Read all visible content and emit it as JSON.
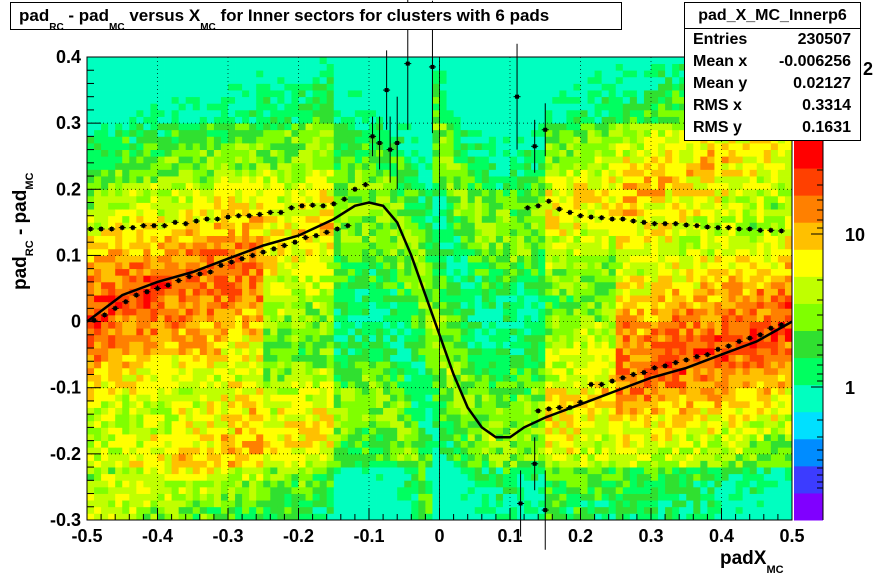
{
  "title": {
    "p1": "pad",
    "s1": "RC",
    "p2": " - pad",
    "s2": "MC",
    "p3": " versus X",
    "s3": "MC",
    "p4": " for Inner sectors for clusters with 6 pads"
  },
  "stats": {
    "name": "pad_X_MC_Innerp6",
    "rows": [
      {
        "key": "Entries",
        "value": "230507"
      },
      {
        "key": "Mean x",
        "value": "-0.006256"
      },
      {
        "key": "Mean y",
        "value": "0.02127"
      },
      {
        "key": "RMS x",
        "value": "0.3314"
      },
      {
        "key": "RMS y",
        "value": "0.1631"
      }
    ]
  },
  "axis_labels": {
    "x_main": "padX",
    "x_sub": "MC",
    "y_p1": "pad",
    "y_s1": "RC",
    "y_p2": " - pad",
    "y_s2": "MC"
  },
  "chart_data": {
    "type": "heatmap",
    "xlim": [
      -0.5,
      0.5
    ],
    "ylim": [
      -0.3,
      0.4
    ],
    "x_ticks": [
      "-0.5",
      "-0.4",
      "-0.3",
      "-0.2",
      "-0.1",
      "0",
      "0.1",
      "0.2",
      "0.3",
      "0.4",
      "0.5"
    ],
    "y_ticks": [
      "-0.3",
      "-0.2",
      "-0.1",
      "0",
      "0.1",
      "0.2",
      "0.3",
      "0.4"
    ],
    "color_scale": {
      "log": true,
      "ticks": [
        "1",
        "10"
      ],
      "partial_tick": "2",
      "palette": [
        "#8000ff",
        "#3c3cff",
        "#008cff",
        "#00e0ff",
        "#00ffc0",
        "#00ff60",
        "#30e030",
        "#80ff00",
        "#c0ff00",
        "#ffff00",
        "#ffc000",
        "#ff8000",
        "#ff4000",
        "#ff0000"
      ]
    },
    "grid": true,
    "fit_curve": [
      [
        -0.5,
        0.0
      ],
      [
        -0.45,
        0.04
      ],
      [
        -0.4,
        0.06
      ],
      [
        -0.35,
        0.075
      ],
      [
        -0.3,
        0.095
      ],
      [
        -0.25,
        0.115
      ],
      [
        -0.2,
        0.13
      ],
      [
        -0.15,
        0.155
      ],
      [
        -0.12,
        0.175
      ],
      [
        -0.1,
        0.18
      ],
      [
        -0.08,
        0.175
      ],
      [
        -0.06,
        0.15
      ],
      [
        -0.04,
        0.1
      ],
      [
        -0.02,
        0.04
      ],
      [
        0.0,
        -0.02
      ],
      [
        0.02,
        -0.08
      ],
      [
        0.04,
        -0.13
      ],
      [
        0.06,
        -0.16
      ],
      [
        0.08,
        -0.175
      ],
      [
        0.1,
        -0.175
      ],
      [
        0.12,
        -0.16
      ],
      [
        0.15,
        -0.145
      ],
      [
        0.2,
        -0.125
      ],
      [
        0.25,
        -0.105
      ],
      [
        0.3,
        -0.085
      ],
      [
        0.35,
        -0.07
      ],
      [
        0.4,
        -0.05
      ],
      [
        0.45,
        -0.03
      ],
      [
        0.5,
        0.0
      ]
    ],
    "profile_points_upper": [
      [
        -0.495,
        0.14
      ],
      [
        -0.48,
        0.14
      ],
      [
        -0.465,
        0.14
      ],
      [
        -0.45,
        0.142
      ],
      [
        -0.435,
        0.142
      ],
      [
        -0.42,
        0.145
      ],
      [
        -0.405,
        0.145
      ],
      [
        -0.39,
        0.145
      ],
      [
        -0.375,
        0.15
      ],
      [
        -0.36,
        0.148
      ],
      [
        -0.345,
        0.152
      ],
      [
        -0.33,
        0.155
      ],
      [
        -0.315,
        0.155
      ],
      [
        -0.3,
        0.158
      ],
      [
        -0.285,
        0.16
      ],
      [
        -0.27,
        0.16
      ],
      [
        -0.255,
        0.162
      ],
      [
        -0.24,
        0.165
      ],
      [
        -0.225,
        0.165
      ],
      [
        -0.21,
        0.172
      ],
      [
        -0.195,
        0.175
      ],
      [
        -0.18,
        0.176
      ],
      [
        -0.165,
        0.175
      ],
      [
        -0.15,
        0.178
      ],
      [
        -0.135,
        0.185
      ],
      [
        -0.12,
        0.2
      ],
      [
        -0.105,
        0.207
      ],
      [
        0.125,
        0.172
      ],
      [
        0.14,
        0.175
      ],
      [
        0.155,
        0.182
      ],
      [
        0.17,
        0.17
      ],
      [
        0.185,
        0.165
      ],
      [
        0.2,
        0.16
      ],
      [
        0.215,
        0.158
      ],
      [
        0.23,
        0.157
      ],
      [
        0.245,
        0.155
      ],
      [
        0.26,
        0.155
      ],
      [
        0.275,
        0.152
      ],
      [
        0.29,
        0.15
      ],
      [
        0.305,
        0.148
      ],
      [
        0.32,
        0.148
      ],
      [
        0.335,
        0.148
      ],
      [
        0.35,
        0.146
      ],
      [
        0.365,
        0.145
      ],
      [
        0.38,
        0.143
      ],
      [
        0.395,
        0.142
      ],
      [
        0.41,
        0.142
      ],
      [
        0.425,
        0.14
      ],
      [
        0.44,
        0.14
      ],
      [
        0.455,
        0.138
      ],
      [
        0.47,
        0.138
      ],
      [
        0.485,
        0.137
      ]
    ],
    "profile_points_lower": [
      [
        -0.49,
        0.002
      ],
      [
        -0.475,
        0.01
      ],
      [
        -0.46,
        0.02
      ],
      [
        -0.445,
        0.03
      ],
      [
        -0.43,
        0.04
      ],
      [
        -0.415,
        0.045
      ],
      [
        -0.4,
        0.05
      ],
      [
        -0.385,
        0.055
      ],
      [
        -0.37,
        0.062
      ],
      [
        -0.355,
        0.068
      ],
      [
        -0.34,
        0.072
      ],
      [
        -0.325,
        0.075
      ],
      [
        -0.31,
        0.085
      ],
      [
        -0.295,
        0.09
      ],
      [
        -0.28,
        0.095
      ],
      [
        -0.265,
        0.1
      ],
      [
        -0.25,
        0.105
      ],
      [
        -0.235,
        0.11
      ],
      [
        -0.22,
        0.115
      ],
      [
        -0.205,
        0.12
      ],
      [
        -0.19,
        0.127
      ],
      [
        -0.175,
        0.13
      ],
      [
        -0.16,
        0.135
      ],
      [
        -0.145,
        0.14
      ],
      [
        -0.13,
        0.145
      ],
      [
        0.14,
        -0.135
      ],
      [
        0.155,
        -0.132
      ],
      [
        0.17,
        -0.13
      ],
      [
        0.185,
        -0.13
      ],
      [
        0.2,
        -0.122
      ],
      [
        0.215,
        -0.095
      ],
      [
        0.23,
        -0.095
      ],
      [
        0.245,
        -0.09
      ],
      [
        0.26,
        -0.085
      ],
      [
        0.275,
        -0.08
      ],
      [
        0.29,
        -0.077
      ],
      [
        0.305,
        -0.07
      ],
      [
        0.32,
        -0.067
      ],
      [
        0.335,
        -0.062
      ],
      [
        0.35,
        -0.058
      ],
      [
        0.365,
        -0.053
      ],
      [
        0.38,
        -0.05
      ],
      [
        0.395,
        -0.042
      ],
      [
        0.41,
        -0.037
      ],
      [
        0.425,
        -0.03
      ],
      [
        0.44,
        -0.025
      ],
      [
        0.455,
        -0.02
      ],
      [
        0.47,
        -0.01
      ],
      [
        0.485,
        -0.005
      ]
    ],
    "outlier_points": [
      [
        -0.095,
        0.28,
        0.03
      ],
      [
        -0.085,
        0.27,
        0.04
      ],
      [
        -0.075,
        0.35,
        0.06
      ],
      [
        -0.07,
        0.26,
        0.05
      ],
      [
        -0.06,
        0.27,
        0.07
      ],
      [
        -0.045,
        0.39,
        0.1
      ],
      [
        -0.01,
        0.385,
        0.1
      ],
      [
        0.11,
        0.34,
        0.08
      ],
      [
        0.135,
        0.265,
        0.04
      ],
      [
        0.15,
        0.29,
        0.04
      ],
      [
        0.115,
        -0.275,
        0.05
      ],
      [
        0.135,
        -0.215,
        0.04
      ],
      [
        0.15,
        -0.285,
        0.06
      ]
    ]
  }
}
